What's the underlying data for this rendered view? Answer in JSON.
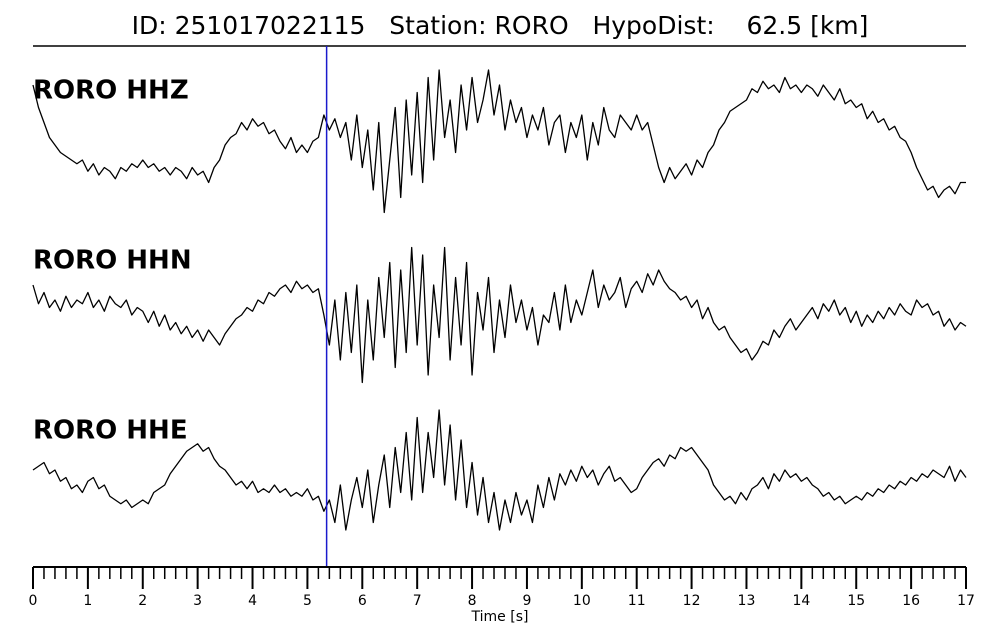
{
  "chart_data": {
    "type": "line",
    "title": "ID: 251017022115   Station: RORO   HypoDist:    62.5 [km]",
    "x_label": "Time [s]",
    "xlim": [
      0,
      17
    ],
    "xticks": [
      0,
      1,
      2,
      3,
      4,
      5,
      6,
      7,
      8,
      9,
      10,
      11,
      12,
      13,
      14,
      15,
      16,
      17
    ],
    "xminor": 0.2,
    "ylim": [
      -1,
      1
    ],
    "label_color": "#4e9a06",
    "vline": {
      "x": 5.35,
      "color": "#1a1acc"
    },
    "x": [
      0,
      0.1,
      0.2,
      0.3,
      0.4,
      0.5,
      0.6,
      0.7,
      0.8,
      0.9,
      1,
      1.1,
      1.2,
      1.3,
      1.4,
      1.5,
      1.6,
      1.7,
      1.8,
      1.9,
      2,
      2.1,
      2.2,
      2.3,
      2.4,
      2.5,
      2.6,
      2.7,
      2.8,
      2.9,
      3,
      3.1,
      3.2,
      3.3,
      3.4,
      3.5,
      3.6,
      3.7,
      3.8,
      3.9,
      4,
      4.1,
      4.2,
      4.3,
      4.4,
      4.5,
      4.6,
      4.7,
      4.8,
      4.9,
      5,
      5.1,
      5.2,
      5.3,
      5.4,
      5.5,
      5.6,
      5.7,
      5.8,
      5.9,
      6,
      6.1,
      6.2,
      6.3,
      6.4,
      6.5,
      6.6,
      6.7,
      6.8,
      6.9,
      7,
      7.1,
      7.2,
      7.3,
      7.4,
      7.5,
      7.6,
      7.7,
      7.8,
      7.9,
      8,
      8.1,
      8.2,
      8.3,
      8.4,
      8.5,
      8.6,
      8.7,
      8.8,
      8.9,
      9,
      9.1,
      9.2,
      9.3,
      9.4,
      9.5,
      9.6,
      9.7,
      9.8,
      9.9,
      10,
      10.1,
      10.2,
      10.3,
      10.4,
      10.5,
      10.6,
      10.7,
      10.8,
      10.9,
      11,
      11.1,
      11.2,
      11.3,
      11.4,
      11.5,
      11.6,
      11.7,
      11.8,
      11.9,
      12,
      12.1,
      12.2,
      12.3,
      12.4,
      12.5,
      12.6,
      12.7,
      12.8,
      12.9,
      13,
      13.1,
      13.2,
      13.3,
      13.4,
      13.5,
      13.6,
      13.7,
      13.8,
      13.9,
      14,
      14.1,
      14.2,
      14.3,
      14.4,
      14.5,
      14.6,
      14.7,
      14.8,
      14.9,
      15,
      15.1,
      15.2,
      15.3,
      15.4,
      15.5,
      15.6,
      15.7,
      15.8,
      15.9,
      16,
      16.1,
      16.2,
      16.3,
      16.4,
      16.5,
      16.6,
      16.7,
      16.8,
      16.9,
      17
    ],
    "series": [
      {
        "name": "RORO HHZ",
        "color": "#000000",
        "values": [
          0.8,
          0.5,
          0.3,
          0.1,
          0.0,
          -0.1,
          -0.15,
          -0.2,
          -0.25,
          -0.2,
          -0.35,
          -0.25,
          -0.4,
          -0.3,
          -0.35,
          -0.45,
          -0.3,
          -0.35,
          -0.25,
          -0.3,
          -0.2,
          -0.3,
          -0.25,
          -0.35,
          -0.3,
          -0.4,
          -0.3,
          -0.35,
          -0.45,
          -0.3,
          -0.4,
          -0.35,
          -0.5,
          -0.3,
          -0.2,
          0.0,
          0.1,
          0.15,
          0.3,
          0.2,
          0.35,
          0.25,
          0.3,
          0.15,
          0.2,
          0.05,
          -0.05,
          0.1,
          -0.1,
          0.0,
          -0.1,
          0.05,
          0.1,
          0.4,
          0.2,
          0.35,
          0.1,
          0.3,
          -0.2,
          0.4,
          -0.3,
          0.2,
          -0.6,
          0.3,
          -0.9,
          -0.2,
          0.5,
          -0.7,
          0.6,
          -0.4,
          0.7,
          -0.5,
          0.9,
          -0.2,
          1.0,
          0.1,
          0.6,
          -0.1,
          0.8,
          0.2,
          0.9,
          0.3,
          0.6,
          1.0,
          0.4,
          0.8,
          0.2,
          0.6,
          0.3,
          0.5,
          0.1,
          0.4,
          0.2,
          0.5,
          0.0,
          0.3,
          0.4,
          -0.1,
          0.3,
          0.1,
          0.4,
          -0.2,
          0.3,
          0.0,
          0.5,
          0.2,
          0.1,
          0.4,
          0.3,
          0.2,
          0.4,
          0.2,
          0.3,
          0.0,
          -0.3,
          -0.5,
          -0.3,
          -0.45,
          -0.35,
          -0.25,
          -0.4,
          -0.2,
          -0.3,
          -0.1,
          0.0,
          0.2,
          0.3,
          0.45,
          0.5,
          0.55,
          0.6,
          0.75,
          0.7,
          0.85,
          0.75,
          0.8,
          0.7,
          0.9,
          0.75,
          0.8,
          0.7,
          0.8,
          0.75,
          0.65,
          0.8,
          0.7,
          0.6,
          0.75,
          0.55,
          0.6,
          0.5,
          0.55,
          0.35,
          0.45,
          0.3,
          0.35,
          0.2,
          0.25,
          0.1,
          0.05,
          -0.1,
          -0.3,
          -0.45,
          -0.6,
          -0.55,
          -0.7,
          -0.6,
          -0.55,
          -0.65,
          -0.5,
          -0.5
        ]
      },
      {
        "name": "RORO HHN",
        "color": "#000000",
        "values": [
          0.4,
          0.15,
          0.3,
          0.1,
          0.2,
          0.05,
          0.25,
          0.1,
          0.2,
          0.15,
          0.3,
          0.1,
          0.2,
          0.05,
          0.25,
          0.15,
          0.1,
          0.2,
          0.0,
          0.1,
          0.05,
          -0.1,
          0.05,
          -0.15,
          0.0,
          -0.2,
          -0.1,
          -0.25,
          -0.15,
          -0.3,
          -0.2,
          -0.35,
          -0.2,
          -0.3,
          -0.4,
          -0.25,
          -0.15,
          -0.05,
          0.0,
          0.1,
          0.05,
          0.2,
          0.15,
          0.3,
          0.25,
          0.35,
          0.4,
          0.3,
          0.45,
          0.35,
          0.4,
          0.3,
          0.35,
          0.0,
          -0.4,
          0.2,
          -0.6,
          0.3,
          -0.5,
          0.4,
          -0.9,
          0.2,
          -0.6,
          0.5,
          -0.3,
          0.7,
          -0.7,
          0.6,
          -0.5,
          0.9,
          -0.4,
          0.8,
          -0.8,
          0.4,
          -0.3,
          0.9,
          -0.6,
          0.5,
          -0.4,
          0.7,
          -0.8,
          0.3,
          -0.2,
          0.5,
          -0.5,
          0.2,
          -0.3,
          0.4,
          -0.1,
          0.2,
          -0.2,
          0.1,
          -0.4,
          0.0,
          -0.1,
          0.3,
          -0.2,
          0.4,
          -0.1,
          0.2,
          0.0,
          0.3,
          0.6,
          0.1,
          0.4,
          0.2,
          0.3,
          0.5,
          0.1,
          0.35,
          0.45,
          0.3,
          0.55,
          0.4,
          0.6,
          0.45,
          0.35,
          0.3,
          0.2,
          0.25,
          0.1,
          0.2,
          -0.05,
          0.1,
          -0.1,
          -0.2,
          -0.15,
          -0.3,
          -0.4,
          -0.5,
          -0.45,
          -0.6,
          -0.5,
          -0.35,
          -0.4,
          -0.2,
          -0.3,
          -0.15,
          -0.05,
          -0.2,
          -0.1,
          0.0,
          0.1,
          -0.05,
          0.15,
          0.05,
          0.2,
          0.0,
          0.1,
          -0.1,
          0.05,
          -0.15,
          0.0,
          -0.1,
          0.05,
          -0.05,
          0.1,
          0.0,
          0.15,
          0.05,
          0.0,
          0.2,
          0.1,
          0.15,
          0.0,
          0.05,
          -0.15,
          -0.05,
          -0.2,
          -0.1,
          -0.15
        ]
      },
      {
        "name": "RORO HHE",
        "color": "#000000",
        "values": [
          0.2,
          0.25,
          0.3,
          0.15,
          0.2,
          0.05,
          0.1,
          -0.05,
          0.0,
          -0.1,
          0.05,
          0.1,
          -0.05,
          0.0,
          -0.15,
          -0.2,
          -0.25,
          -0.2,
          -0.3,
          -0.25,
          -0.2,
          -0.25,
          -0.1,
          -0.05,
          0.0,
          0.15,
          0.25,
          0.35,
          0.45,
          0.5,
          0.55,
          0.45,
          0.5,
          0.35,
          0.25,
          0.2,
          0.1,
          0.0,
          0.05,
          -0.05,
          0.05,
          -0.1,
          -0.05,
          -0.1,
          0.0,
          -0.1,
          -0.05,
          -0.15,
          -0.1,
          -0.15,
          -0.05,
          -0.2,
          -0.15,
          -0.35,
          -0.2,
          -0.5,
          0.0,
          -0.6,
          -0.2,
          0.1,
          -0.3,
          0.2,
          -0.5,
          0.0,
          0.4,
          -0.3,
          0.5,
          -0.1,
          0.7,
          -0.2,
          0.9,
          -0.1,
          0.7,
          0.1,
          1.0,
          0.0,
          0.8,
          -0.2,
          0.6,
          -0.3,
          0.3,
          -0.4,
          0.1,
          -0.5,
          -0.1,
          -0.6,
          -0.2,
          -0.5,
          -0.1,
          -0.4,
          -0.2,
          -0.5,
          0.0,
          -0.3,
          0.1,
          -0.2,
          0.15,
          0.0,
          0.2,
          0.05,
          0.25,
          0.1,
          0.2,
          0.0,
          0.15,
          0.25,
          0.05,
          0.1,
          0.0,
          -0.1,
          -0.05,
          0.1,
          0.2,
          0.3,
          0.35,
          0.25,
          0.4,
          0.35,
          0.5,
          0.45,
          0.5,
          0.4,
          0.3,
          0.2,
          0.0,
          -0.1,
          -0.2,
          -0.15,
          -0.25,
          -0.1,
          -0.2,
          -0.05,
          0.0,
          0.1,
          -0.05,
          0.15,
          0.05,
          0.2,
          0.1,
          0.15,
          0.05,
          0.1,
          0.0,
          -0.05,
          -0.15,
          -0.1,
          -0.2,
          -0.15,
          -0.25,
          -0.2,
          -0.15,
          -0.2,
          -0.1,
          -0.15,
          -0.05,
          -0.1,
          0.0,
          -0.05,
          0.05,
          0.0,
          0.1,
          0.05,
          0.15,
          0.1,
          0.2,
          0.15,
          0.1,
          0.25,
          0.05,
          0.2,
          0.1
        ]
      }
    ]
  }
}
